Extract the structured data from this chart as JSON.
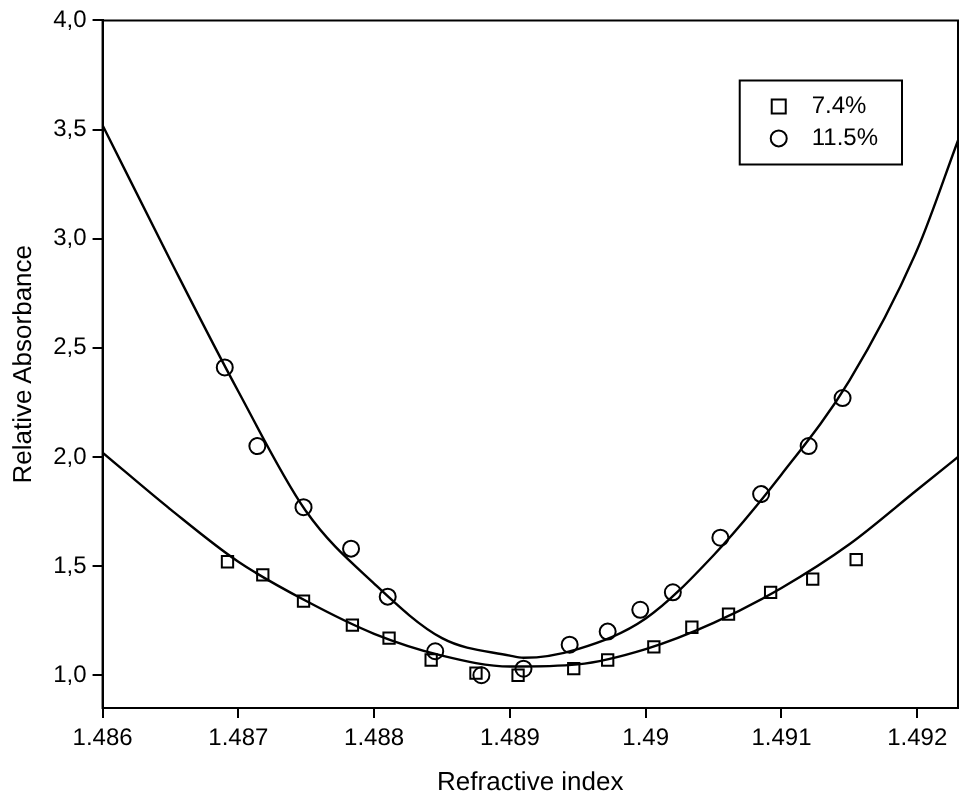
{
  "chart_data": {
    "type": "scatter",
    "xlabel": "Refractive index",
    "ylabel": "Relative Absorbance",
    "xlim": [
      1.486,
      1.4923
    ],
    "ylim": [
      0.85,
      4.0
    ],
    "xticks": [
      1.486,
      1.487,
      1.488,
      1.489,
      1.49,
      1.491,
      1.492
    ],
    "yticks": [
      {
        "value": 1,
        "label": "1,0"
      },
      {
        "value": 1.5,
        "label": "1,5"
      },
      {
        "value": 2,
        "label": "2,0"
      },
      {
        "value": 2.5,
        "label": "2,5"
      },
      {
        "value": 3,
        "label": "3,0"
      },
      {
        "value": 3.5,
        "label": "3,5"
      },
      {
        "value": 4,
        "label": "4,0"
      }
    ],
    "grid": false,
    "legend": "top right",
    "series": [
      {
        "name": "7.4%",
        "type": "scatter",
        "marker": "square",
        "color": "#000000",
        "x": [
          1.48692,
          1.48718,
          1.48748,
          1.48784,
          1.48811,
          1.48842,
          1.48875,
          1.48906,
          1.48947,
          1.48972,
          1.49006,
          1.49034,
          1.49061,
          1.49092,
          1.49123,
          1.49155
        ],
        "values": [
          1.52,
          1.46,
          1.34,
          1.23,
          1.17,
          1.07,
          1.01,
          1.0,
          1.03,
          1.07,
          1.13,
          1.22,
          1.28,
          1.38,
          1.44,
          1.53
        ]
      },
      {
        "name": "11.5%",
        "type": "scatter",
        "marker": "circle",
        "color": "#000000",
        "x": [
          1.4869,
          1.48714,
          1.48748,
          1.48783,
          1.4881,
          1.48845,
          1.48879,
          1.4891,
          1.48944,
          1.48972,
          1.48996,
          1.4902,
          1.49055,
          1.49085,
          1.4912,
          1.49145
        ],
        "values": [
          2.41,
          2.05,
          1.77,
          1.58,
          1.36,
          1.11,
          1.0,
          1.03,
          1.14,
          1.2,
          1.3,
          1.38,
          1.63,
          1.83,
          2.05,
          2.27
        ]
      },
      {
        "type": "line",
        "marker": "none",
        "line_style": "solid",
        "color": "#000000",
        "x": [
          1.486,
          1.4865,
          1.487,
          1.4875,
          1.488,
          1.4885,
          1.489,
          1.4895,
          1.49,
          1.4905,
          1.491,
          1.4915,
          1.492,
          1.4923
        ],
        "values": [
          2.02,
          1.76,
          1.52,
          1.34,
          1.19,
          1.09,
          1.04,
          1.05,
          1.12,
          1.24,
          1.4,
          1.6,
          1.85,
          2.0
        ]
      },
      {
        "type": "line",
        "marker": "none",
        "line_style": "solid",
        "color": "#000000",
        "x": [
          1.486,
          1.4865,
          1.487,
          1.4875,
          1.488,
          1.4885,
          1.489,
          1.4891,
          1.4895,
          1.49,
          1.4905,
          1.491,
          1.4915,
          1.492,
          1.4923
        ],
        "values": [
          3.52,
          2.9,
          2.3,
          1.75,
          1.42,
          1.17,
          1.09,
          1.08,
          1.12,
          1.26,
          1.55,
          1.92,
          2.35,
          2.95,
          3.45
        ]
      }
    ]
  }
}
